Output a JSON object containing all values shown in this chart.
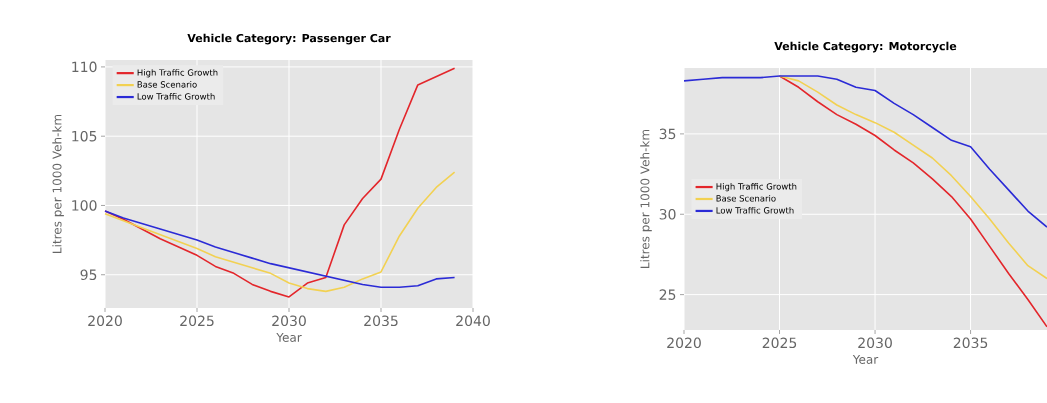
{
  "chart_data": [
    {
      "type": "line",
      "title": "Vehicle Category: Passenger Car",
      "xlabel": "Year",
      "ylabel": "Litres per 1000 Veh-km",
      "x": [
        2020,
        2021,
        2022,
        2023,
        2024,
        2025,
        2026,
        2027,
        2028,
        2029,
        2030,
        2031,
        2032,
        2033,
        2034,
        2035,
        2036,
        2037,
        2038,
        2039
      ],
      "series": [
        {
          "name": "High Traffic Growth",
          "color": "#e3262b",
          "values": [
            99.6,
            99.0,
            98.3,
            97.6,
            97.0,
            96.4,
            95.6,
            95.1,
            94.3,
            93.8,
            93.4,
            94.4,
            94.8,
            98.6,
            100.5,
            101.9,
            105.5,
            108.7,
            109.3,
            109.9
          ]
        },
        {
          "name": "Base Scenario",
          "color": "#f2d152",
          "values": [
            99.4,
            98.9,
            98.4,
            97.9,
            97.4,
            96.9,
            96.3,
            95.9,
            95.5,
            95.1,
            94.4,
            94.0,
            93.8,
            94.1,
            94.7,
            95.2,
            97.8,
            99.8,
            101.3,
            102.4
          ]
        },
        {
          "name": "Low Traffic Growth",
          "color": "#2b2bd6",
          "values": [
            99.6,
            99.1,
            98.7,
            98.3,
            97.9,
            97.5,
            97.0,
            96.6,
            96.2,
            95.8,
            95.5,
            95.2,
            94.9,
            94.6,
            94.3,
            94.1,
            94.1,
            94.2,
            94.7,
            94.8
          ]
        }
      ],
      "xlim": [
        2020,
        2040
      ],
      "ylim": [
        92.6,
        110.5
      ],
      "xticks": [
        2020,
        2025,
        2030,
        2035,
        2040
      ],
      "yticks": [
        95,
        100,
        105,
        110
      ],
      "grid": true,
      "legend": "top left"
    },
    {
      "type": "line",
      "title": "Vehicle Category: Motorcycle",
      "xlabel": "Year",
      "ylabel": "Litres per 1000 Veh-km",
      "x": [
        2020,
        2021,
        2022,
        2023,
        2024,
        2025,
        2026,
        2027,
        2028,
        2029,
        2030,
        2031,
        2032,
        2033,
        2034,
        2035,
        2036,
        2037,
        2038,
        2039
      ],
      "series": [
        {
          "name": "High Traffic Growth",
          "color": "#e3262b",
          "values": [
            null,
            null,
            null,
            null,
            null,
            38.6,
            37.9,
            37.0,
            36.2,
            35.6,
            34.9,
            34.0,
            33.2,
            32.2,
            31.1,
            29.7,
            28.0,
            26.3,
            24.7,
            23.0
          ]
        },
        {
          "name": "Base Scenario",
          "color": "#f2d152",
          "values": [
            null,
            null,
            null,
            null,
            null,
            38.6,
            38.3,
            37.6,
            36.8,
            36.2,
            35.7,
            35.1,
            34.3,
            33.5,
            32.4,
            31.1,
            29.7,
            28.2,
            26.8,
            26.0
          ]
        },
        {
          "name": "Low Traffic Growth",
          "color": "#2b2bd6",
          "values": [
            38.3,
            38.4,
            38.5,
            38.5,
            38.5,
            38.6,
            38.6,
            38.6,
            38.4,
            37.9,
            37.7,
            36.9,
            36.2,
            35.4,
            34.6,
            34.2,
            32.8,
            31.5,
            30.2,
            29.2
          ]
        }
      ],
      "xlim": [
        2020,
        2039
      ],
      "ylim": [
        22.8,
        39.1
      ],
      "xticks": [
        2020,
        2025,
        2030,
        2035
      ],
      "yticks": [
        25,
        30,
        35
      ],
      "grid": true,
      "legend": "left"
    }
  ]
}
